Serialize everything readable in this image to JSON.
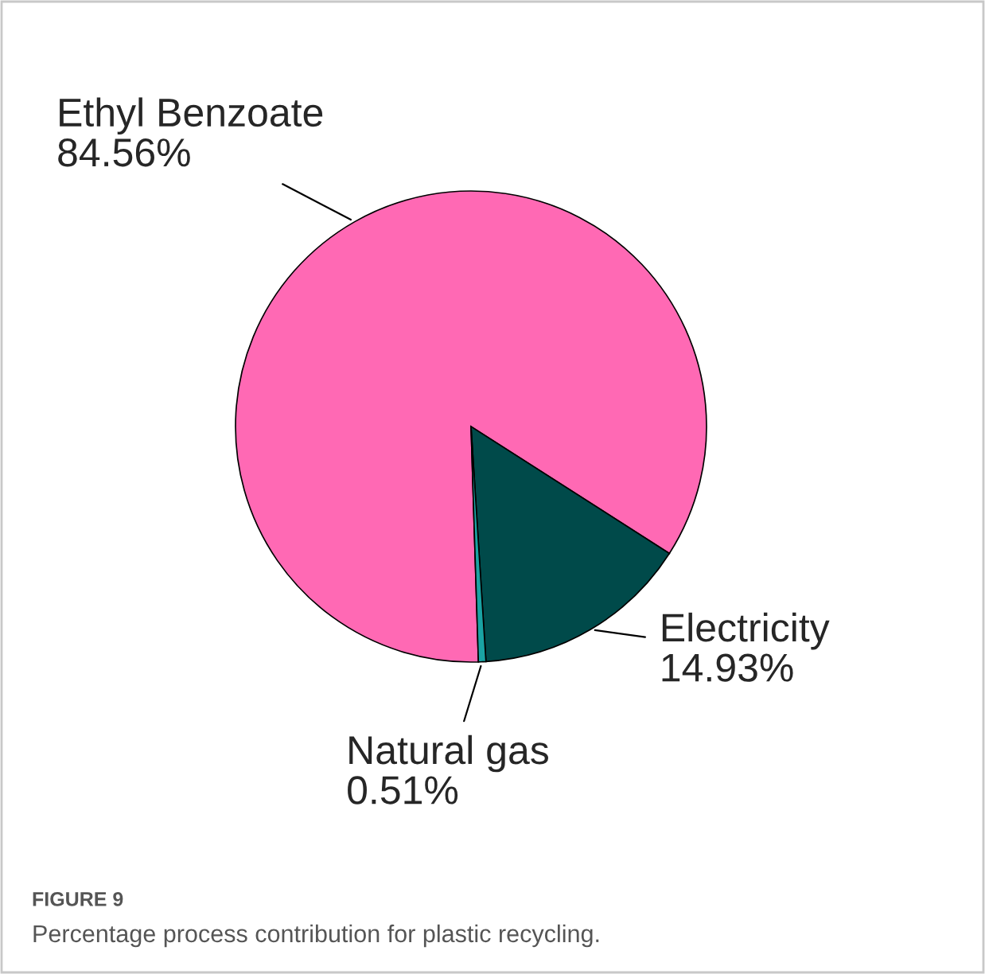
{
  "chart_data": {
    "type": "pie",
    "categories": [
      "Ethyl Benzoate",
      "Electricity",
      "Natural gas"
    ],
    "values": [
      84.56,
      14.93,
      0.51
    ],
    "colors": [
      "#ff69b4",
      "#004a4a",
      "#1aa3a3"
    ],
    "value_labels": [
      "84.56%",
      "14.93%",
      "0.51%"
    ],
    "annotations": [
      "FIGURE 9",
      "Percentage process contribution for plastic recycling."
    ]
  }
}
